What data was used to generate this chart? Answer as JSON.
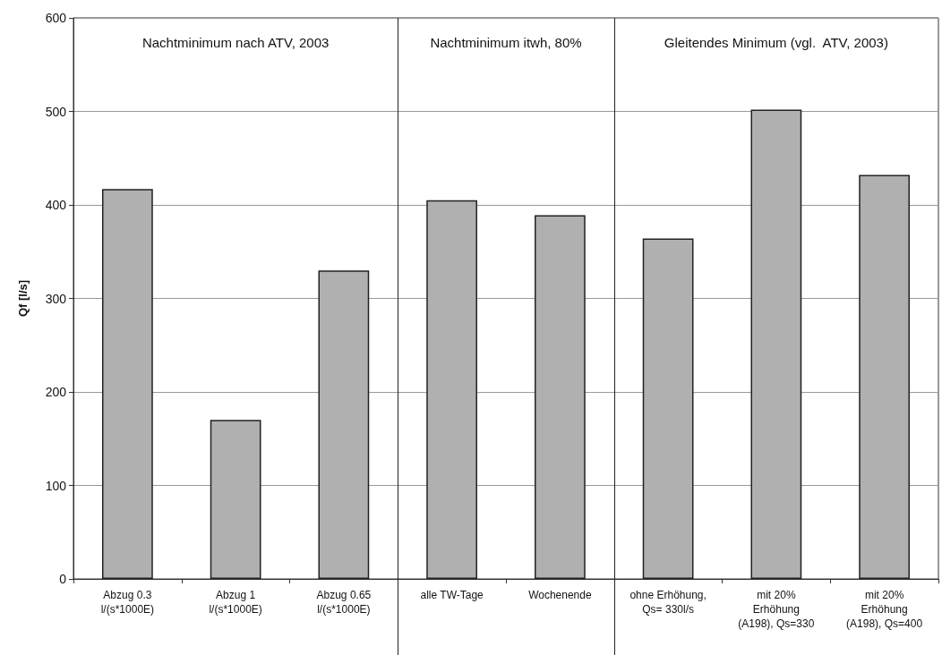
{
  "chart_data": {
    "type": "bar",
    "ylabel": "Qf [l/s]",
    "categories": [
      "Abzug 0.3\nl/(s*1000E)",
      "Abzug 1\nl/(s*1000E)",
      "Abzug 0.65\nl/(s*1000E)",
      "alle TW-Tage",
      "Wochenende",
      "ohne Erhöhung,\nQs= 330l/s",
      "mit 20%\nErhöhung\n(A198), Qs=330",
      "mit 20%\nErhöhung\n(A198), Qs=400"
    ],
    "values": [
      417,
      170,
      330,
      405,
      389,
      364,
      502,
      432
    ],
    "color": "#b0b0b0",
    "ylim": [
      0,
      600
    ],
    "yticks": [
      0,
      100,
      200,
      300,
      400,
      500,
      600
    ],
    "grid": "y",
    "annotations": [
      "Nachtminimum nach ATV, 2003",
      "Nachtminimum itwh, 80%",
      "Gleitendes Minimum (vgl.  ATV, 2003)"
    ]
  }
}
